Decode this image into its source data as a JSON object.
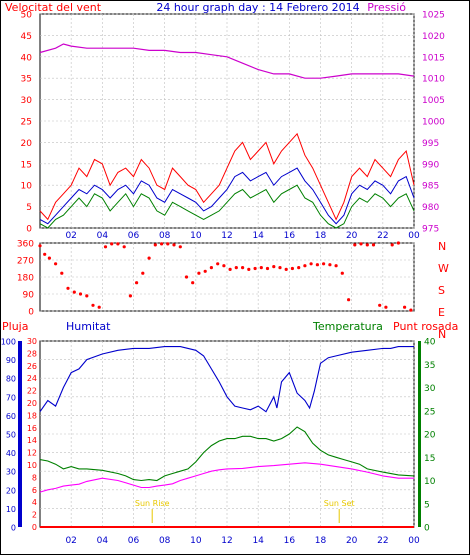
{
  "header": {
    "wind_label": "Velocitat del vent",
    "title": "24 hour graph day : 14 Febrero 2014",
    "pressure_label": "Pressió"
  },
  "compass": [
    "N",
    "W",
    "S",
    "E",
    "N"
  ],
  "lower_labels": {
    "rain": "Pluja",
    "humidity": "Humitat",
    "temperature": "Temperatura",
    "dewpoint": "Punt rosada"
  },
  "markers": {
    "sunrise": "Sun Rise",
    "sunset": "Sun Set"
  },
  "colors": {
    "wind_gust": "#ff0000",
    "wind_avg": "#0000cc",
    "wind_green": "#008000",
    "pressure": "#cc00cc",
    "direction": "#ff0000",
    "humidity": "#0000cc",
    "temperature": "#008000",
    "dewpoint": "#ff00ff",
    "rain": "#ff0000",
    "grid": "#c0c0c0",
    "marker": "#e8c800"
  },
  "chart_data": [
    {
      "type": "line",
      "name": "wind_pressure",
      "xlim": [
        0,
        24
      ],
      "x_ticks": [
        "02",
        "04",
        "06",
        "08",
        "10",
        "12",
        "14",
        "16",
        "18",
        "20",
        "22",
        "00"
      ],
      "left_axis": {
        "label": "Velocitat del vent",
        "ylim": [
          0,
          50
        ],
        "ticks": [
          0,
          5,
          10,
          15,
          20,
          25,
          30,
          35,
          40,
          45,
          50
        ]
      },
      "right_axis": {
        "label": "Pressió",
        "ylim": [
          975,
          1025
        ],
        "ticks": [
          975,
          980,
          985,
          990,
          995,
          1000,
          1005,
          1010,
          1015,
          1020,
          1025
        ]
      },
      "series": [
        {
          "key": "gust",
          "axis": "left",
          "x": [
            0,
            0.5,
            1,
            1.5,
            2,
            2.5,
            3,
            3.5,
            4,
            4.5,
            5,
            5.5,
            6,
            6.5,
            7,
            7.5,
            8,
            8.5,
            9,
            9.5,
            10,
            10.5,
            11,
            11.5,
            12,
            12.5,
            13,
            13.5,
            14,
            14.5,
            15,
            15.5,
            16,
            16.5,
            17,
            17.5,
            18,
            18.5,
            19,
            19.5,
            20,
            20.5,
            21,
            21.5,
            22,
            22.5,
            23,
            23.5,
            24
          ],
          "y": [
            4,
            2,
            6,
            8,
            10,
            14,
            12,
            16,
            15,
            10,
            13,
            14,
            12,
            16,
            14,
            10,
            9,
            14,
            12,
            10,
            9,
            6,
            8,
            10,
            14,
            18,
            20,
            16,
            18,
            20,
            15,
            18,
            20,
            22,
            17,
            14,
            10,
            6,
            2,
            6,
            12,
            14,
            12,
            16,
            14,
            12,
            16,
            18,
            10
          ]
        },
        {
          "key": "average",
          "axis": "left",
          "x": [
            0,
            0.5,
            1,
            1.5,
            2,
            2.5,
            3,
            3.5,
            4,
            4.5,
            5,
            5.5,
            6,
            6.5,
            7,
            7.5,
            8,
            8.5,
            9,
            9.5,
            10,
            10.5,
            11,
            11.5,
            12,
            12.5,
            13,
            13.5,
            14,
            14.5,
            15,
            15.5,
            16,
            16.5,
            17,
            17.5,
            18,
            18.5,
            19,
            19.5,
            20,
            20.5,
            21,
            21.5,
            22,
            22.5,
            23,
            23.5,
            24
          ],
          "y": [
            2,
            1,
            3,
            5,
            7,
            9,
            8,
            10,
            9,
            7,
            9,
            10,
            8,
            11,
            10,
            7,
            6,
            9,
            8,
            7,
            6,
            4,
            5,
            7,
            9,
            12,
            13,
            11,
            12,
            13,
            10,
            12,
            13,
            14,
            11,
            9,
            6,
            3,
            1,
            3,
            8,
            10,
            9,
            11,
            10,
            8,
            11,
            12,
            7
          ]
        },
        {
          "key": "green",
          "axis": "left",
          "x": [
            0,
            0.5,
            1,
            1.5,
            2,
            2.5,
            3,
            3.5,
            4,
            4.5,
            5,
            5.5,
            6,
            6.5,
            7,
            7.5,
            8,
            8.5,
            9,
            9.5,
            10,
            10.5,
            11,
            11.5,
            12,
            12.5,
            13,
            13.5,
            14,
            14.5,
            15,
            15.5,
            16,
            16.5,
            17,
            17.5,
            18,
            18.5,
            19,
            19.5,
            20,
            20.5,
            21,
            21.5,
            22,
            22.5,
            23,
            23.5,
            24
          ],
          "y": [
            1,
            0,
            2,
            3,
            5,
            7,
            5,
            8,
            7,
            4,
            6,
            8,
            5,
            8,
            7,
            4,
            3,
            6,
            5,
            4,
            3,
            2,
            3,
            4,
            6,
            8,
            9,
            7,
            8,
            9,
            6,
            8,
            9,
            10,
            7,
            6,
            3,
            1,
            0,
            1,
            5,
            7,
            6,
            8,
            7,
            5,
            7,
            8,
            4
          ]
        },
        {
          "key": "pressure",
          "axis": "right",
          "x": [
            0,
            1,
            1.5,
            2,
            3,
            4,
            5,
            6,
            7,
            8,
            9,
            10,
            11,
            12,
            13,
            14,
            15,
            16,
            17,
            18,
            19,
            20,
            21,
            22,
            23,
            24
          ],
          "y": [
            1016,
            1017,
            1018,
            1017.5,
            1017,
            1017,
            1017,
            1017,
            1016.5,
            1016.5,
            1016,
            1016,
            1015.5,
            1015,
            1013.5,
            1012,
            1011,
            1011,
            1010,
            1010,
            1010.5,
            1011,
            1011,
            1011,
            1011,
            1010.5
          ]
        }
      ]
    },
    {
      "type": "scatter",
      "name": "wind_direction",
      "xlim": [
        0,
        24
      ],
      "ylim": [
        0,
        360
      ],
      "y_ticks": [
        0,
        90,
        180,
        270,
        360
      ],
      "x": [
        0,
        0.3,
        0.6,
        1.0,
        1.4,
        1.8,
        2.2,
        2.6,
        3.0,
        3.4,
        3.8,
        4.2,
        4.6,
        5.0,
        5.4,
        5.8,
        6.2,
        6.6,
        7.0,
        7.4,
        7.8,
        8.2,
        8.6,
        9.0,
        9.4,
        9.8,
        10.2,
        10.6,
        11.0,
        11.4,
        11.8,
        12.2,
        12.6,
        13.0,
        13.4,
        13.8,
        14.2,
        14.6,
        15.0,
        15.4,
        15.8,
        16.2,
        16.6,
        17.0,
        17.4,
        17.8,
        18.2,
        18.6,
        19.0,
        19.4,
        19.8,
        20.2,
        20.6,
        21.0,
        21.4,
        21.8,
        22.2,
        22.6,
        23.0,
        23.4,
        23.8
      ],
      "y": [
        345,
        300,
        280,
        250,
        200,
        120,
        100,
        90,
        80,
        30,
        20,
        340,
        355,
        355,
        340,
        80,
        150,
        200,
        280,
        350,
        355,
        355,
        350,
        340,
        180,
        150,
        200,
        210,
        230,
        250,
        240,
        220,
        230,
        230,
        220,
        225,
        230,
        225,
        235,
        230,
        220,
        225,
        230,
        240,
        250,
        245,
        250,
        245,
        240,
        200,
        60,
        350,
        355,
        350,
        350,
        30,
        20,
        350,
        360,
        20,
        5
      ]
    },
    {
      "type": "line",
      "name": "humidity_temperature",
      "xlim": [
        0,
        24
      ],
      "left_axis_rain": {
        "label": "Pluja",
        "ylim": [
          0,
          30
        ],
        "ticks": [
          0,
          2,
          4,
          6,
          8,
          10,
          12,
          14,
          16,
          18,
          20,
          22,
          24,
          26,
          28,
          30
        ]
      },
      "left_axis_humidity": {
        "label": "Humitat",
        "ylim": [
          0,
          100
        ],
        "ticks": [
          0,
          10,
          20,
          30,
          40,
          50,
          60,
          70,
          80,
          90,
          100
        ]
      },
      "right_axis": {
        "label": "Temperatura",
        "ylim": [
          0,
          40
        ],
        "ticks": [
          0,
          5,
          10,
          15,
          20,
          25,
          30,
          35,
          40
        ]
      },
      "series": [
        {
          "key": "humidity",
          "axis": "humidity",
          "x": [
            0,
            0.5,
            1,
            1.5,
            2,
            2.5,
            3,
            4,
            5,
            6,
            7,
            8,
            9,
            10,
            10.5,
            11,
            11.5,
            12,
            12.5,
            13,
            13.5,
            14,
            14.5,
            15,
            15.2,
            15.5,
            16,
            16.5,
            17,
            17.3,
            17.6,
            18,
            18.5,
            19,
            20,
            21,
            22,
            22.5,
            23,
            24
          ],
          "y": [
            62,
            68,
            65,
            75,
            83,
            85,
            90,
            93,
            95,
            96,
            96,
            97,
            97,
            95,
            92,
            85,
            78,
            70,
            65,
            64,
            63,
            65,
            62,
            70,
            64,
            78,
            83,
            72,
            68,
            64,
            73,
            88,
            91,
            92,
            94,
            95,
            96,
            96,
            97,
            97
          ]
        },
        {
          "key": "temperature",
          "axis": "right",
          "x": [
            0,
            0.5,
            1,
            1.5,
            2,
            2.5,
            3,
            4,
            5,
            5.5,
            6,
            6.5,
            7,
            7.5,
            8,
            8.5,
            9,
            9.5,
            10,
            10.5,
            11,
            11.5,
            12,
            12.5,
            13,
            13.5,
            14,
            14.5,
            15,
            15.5,
            16,
            16.5,
            17,
            17.5,
            18,
            18.5,
            19,
            19.5,
            20,
            20.5,
            21,
            22,
            23,
            24
          ],
          "y": [
            14.5,
            14.2,
            13.5,
            12.5,
            13.0,
            12.5,
            12.5,
            12.2,
            11.5,
            11.0,
            10.2,
            10.0,
            10.2,
            10.0,
            11.0,
            11.5,
            12.0,
            12.5,
            14.0,
            16.0,
            17.5,
            18.5,
            19.0,
            19.0,
            19.5,
            19.5,
            19.0,
            19.0,
            18.5,
            19.0,
            20.0,
            21.5,
            20.5,
            18.0,
            16.5,
            15.5,
            15.0,
            14.5,
            14.0,
            13.5,
            12.5,
            11.8,
            11.2,
            11.0
          ]
        },
        {
          "key": "dewpoint",
          "axis": "right",
          "x": [
            0,
            0.5,
            1,
            1.5,
            2,
            2.5,
            3,
            4,
            5,
            6,
            6.5,
            7,
            7.5,
            8,
            8.5,
            9,
            9.5,
            10,
            10.5,
            11,
            11.5,
            12,
            13,
            14,
            15,
            16,
            17,
            18,
            19,
            20,
            21,
            22,
            23,
            24
          ],
          "y": [
            7.5,
            8.0,
            8.3,
            8.8,
            9.0,
            9.2,
            9.8,
            10.5,
            10.0,
            9.0,
            8.5,
            8.5,
            8.8,
            9.0,
            9.3,
            10.0,
            10.5,
            11.0,
            11.5,
            12.0,
            12.3,
            12.5,
            12.6,
            13.0,
            13.2,
            13.5,
            13.8,
            13.5,
            13.0,
            12.5,
            11.8,
            11.0,
            10.5,
            10.5
          ]
        },
        {
          "key": "rain",
          "axis": "rain",
          "x": [
            0,
            24
          ],
          "y": [
            0,
            0
          ]
        }
      ],
      "markers": [
        {
          "x": 7.2,
          "label": "Sun Rise"
        },
        {
          "x": 19.2,
          "label": "Sun Set"
        }
      ]
    }
  ]
}
